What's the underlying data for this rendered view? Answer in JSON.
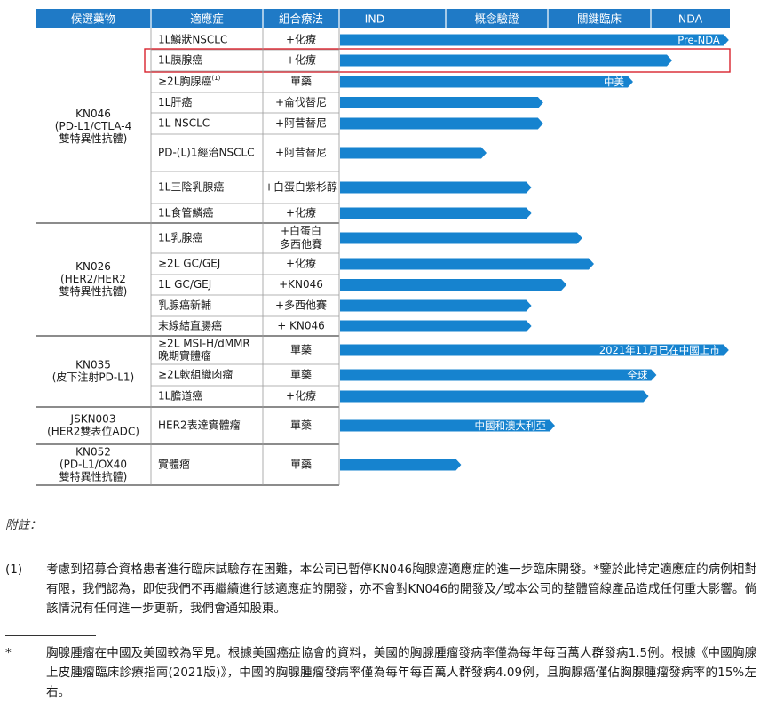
{
  "header": [
    "候選藥物",
    "適應症",
    "組合療法",
    "IND",
    "概念驗證",
    "關鍵臨床",
    "NDA"
  ],
  "groups": [
    {
      "drug": [
        "KN046",
        "(PD-L1/CTLA-4",
        "雙特異性抗體)"
      ],
      "rows": [
        {
          "ind": [
            "1L鱗狀NSCLC"
          ],
          "combo": [
            "+化療"
          ],
          "progress": 0.995,
          "label": "Pre-NDA",
          "highlight": false
        },
        {
          "ind": [
            "1L胰腺癌"
          ],
          "combo": [
            "+化療"
          ],
          "progress": 0.85,
          "label": "",
          "highlight": true
        },
        {
          "ind": [
            "≥2L胸腺癌"
          ],
          "sup": "(1)",
          "combo": [
            "單藥"
          ],
          "progress": 0.75,
          "label": "中美",
          "highlight": false
        },
        {
          "ind": [
            "1L肝癌"
          ],
          "combo": [
            "+侖伐替尼"
          ],
          "progress": 0.52,
          "label": "",
          "highlight": false
        },
        {
          "ind": [
            "1L NSCLC"
          ],
          "combo": [
            "+阿昔替尼"
          ],
          "progress": 0.52,
          "label": "",
          "highlight": false
        },
        {
          "ind": [
            "PD-(L)1經治NSCLC"
          ],
          "combo": [
            "+阿昔替尼"
          ],
          "progress": 0.375,
          "label": "",
          "highlight": false
        },
        {
          "ind": [
            "1L三陰乳腺癌"
          ],
          "combo": [
            "+白蛋白紫杉醇"
          ],
          "progress": 0.49,
          "label": "",
          "highlight": false
        },
        {
          "ind": [
            "1L食管鱗癌"
          ],
          "combo": [
            "+化療"
          ],
          "progress": 0.49,
          "label": "",
          "highlight": false
        }
      ]
    },
    {
      "drug": [
        "KN026",
        "(HER2/HER2",
        "雙特異性抗體)"
      ],
      "rows": [
        {
          "ind": [
            "1L乳腺癌"
          ],
          "combo": [
            "+白蛋白",
            "多西他賽"
          ],
          "progress": 0.62,
          "label": "",
          "highlight": false
        },
        {
          "ind": [
            "≥2L GC/GEJ"
          ],
          "combo": [
            "+化療"
          ],
          "progress": 0.65,
          "label": "",
          "highlight": false
        },
        {
          "ind": [
            "1L GC/GEJ"
          ],
          "combo": [
            "+KN046"
          ],
          "progress": 0.58,
          "label": "",
          "highlight": false
        },
        {
          "ind": [
            "乳腺癌新輔"
          ],
          "combo": [
            "+多西他賽"
          ],
          "progress": 0.49,
          "label": "",
          "highlight": false
        },
        {
          "ind": [
            "末線結直腸癌"
          ],
          "combo": [
            "+ KN046"
          ],
          "progress": 0.49,
          "label": "",
          "highlight": false
        }
      ]
    },
    {
      "drug": [
        "KN035",
        "(皮下注射PD-L1)"
      ],
      "rows": [
        {
          "ind": [
            "≥2L MSI-H/dMMR",
            "晚期實體瘤"
          ],
          "combo": [
            "單藥"
          ],
          "progress": 0.995,
          "label": "2021年11月已在中國上市",
          "highlight": false
        },
        {
          "ind": [
            "≥2L軟組織肉瘤"
          ],
          "combo": [
            "單藥"
          ],
          "progress": 0.81,
          "label": "全球",
          "highlight": false
        },
        {
          "ind": [
            "1L膽道癌"
          ],
          "combo": [
            "+化療"
          ],
          "progress": 0.79,
          "label": "",
          "highlight": false
        }
      ]
    },
    {
      "drug": [
        "JSKN003",
        "(HER2雙表位ADC)"
      ],
      "rows": [
        {
          "ind": [
            "HER2表達實體瘤"
          ],
          "combo": [
            "單藥"
          ],
          "progress": 0.55,
          "label": "中國和澳大利亞",
          "highlight": false
        }
      ]
    },
    {
      "drug": [
        "KN052",
        "(PD-L1/OX40",
        "雙特異性抗體)"
      ],
      "rows": [
        {
          "ind": [
            "實體瘤"
          ],
          "combo": [
            "單藥"
          ],
          "progress": 0.31,
          "label": "",
          "highlight": false
        }
      ]
    }
  ],
  "colors": {
    "header_bg": "#1f7ac6",
    "bar": "#1683cf",
    "highlight_border": "#d9232d",
    "rule": "#1a1a1a",
    "grid": "#9a9a9a"
  },
  "notes": {
    "title": "附註：",
    "note1_num": "(1)",
    "note1_text": "考慮到招募合資格患者進行臨床試驗存在困難，本公司已暫停KN046胸腺癌適應症的進一步臨床開發。*鑒於此特定適應症的病例相對有限，我們認為，即使我們不再繼續進行該適應症的開發，亦不會對KN046的開發及╱或本公司的整體管線產品造成任何重大影響。倘該情況有任何進一步更新，我們會通知股東。",
    "note2_num": "*",
    "note2_text": "胸腺腫瘤在中國及美國較為罕見。根據美國癌症協會的資料，美國的胸腺腫瘤發病率僅為每年每百萬人群發病1.5例。根據《中國胸腺上皮腫瘤臨床診療指南(2021版)》，中國的胸腺腫瘤發病率僅為每年每百萬人群發病4.09例，且胸腺癌僅佔胸腺腫瘤發病率的15%左右。"
  }
}
